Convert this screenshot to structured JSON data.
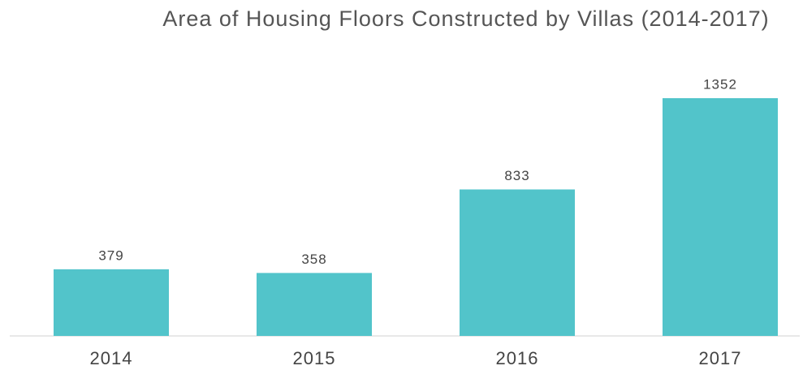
{
  "chart_data": {
    "type": "bar",
    "title": "Area of Housing Floors Constructed by Villas (2014-2017)",
    "categories": [
      "2014",
      "2015",
      "2016",
      "2017"
    ],
    "values": [
      379,
      358,
      833,
      1352
    ],
    "color": "#52c4ca"
  }
}
